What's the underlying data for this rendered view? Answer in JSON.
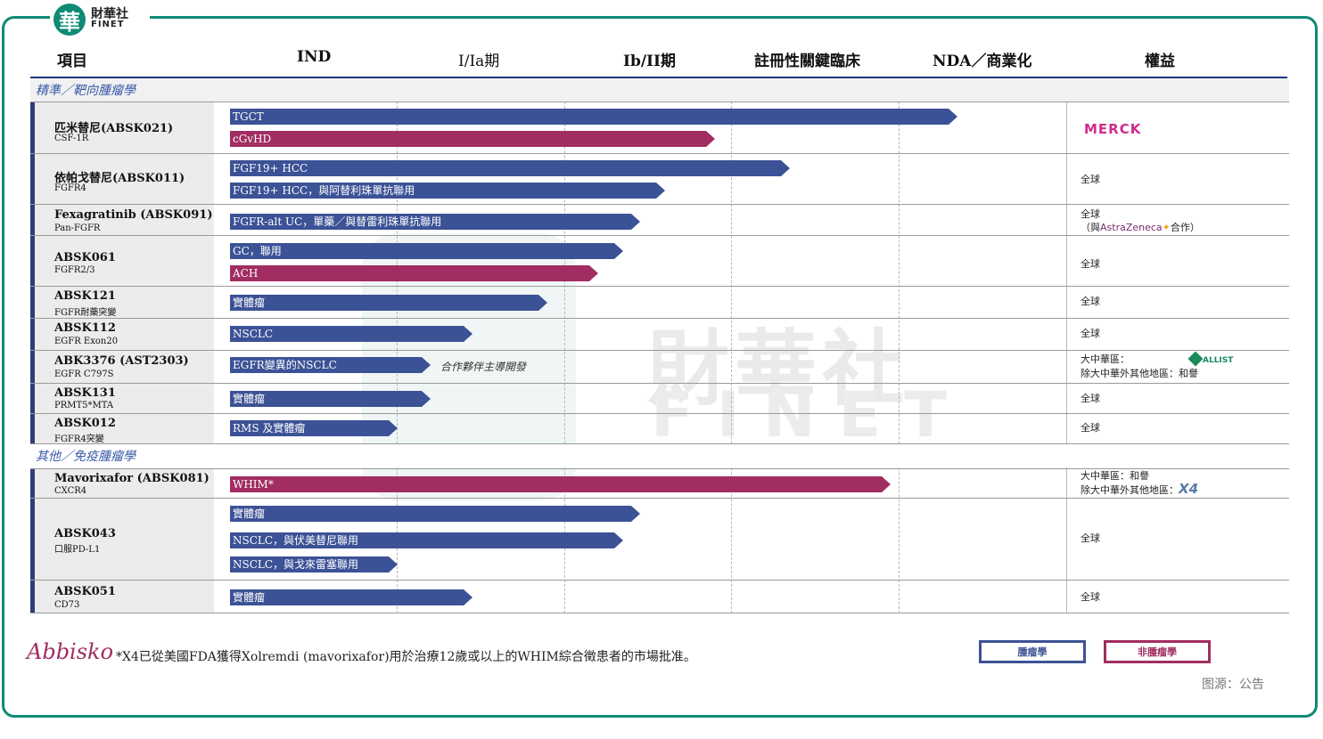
{
  "brand": {
    "logo_char": "華",
    "name_cn": "財華社",
    "name_en": "FINET"
  },
  "watermark": {
    "cn": "財華社",
    "en": "FINET"
  },
  "headers": [
    "項目",
    "IND",
    "I/Ia期",
    "Ib/II期",
    "註冊性關鍵臨床",
    "NDA／商業化",
    "權益"
  ],
  "sections": {
    "precision": "精準／靶向腫瘤學",
    "other": "其他／免疫腫瘤學"
  },
  "rows": [
    {
      "name": "匹米替尼(ABSK021)",
      "sub": "CSF-1R",
      "rights": "",
      "partner_logo": "MERCK"
    },
    {
      "name": "依帕戈替尼(ABSK011)",
      "sub": "FGFR4",
      "rights": "全球"
    },
    {
      "name": "Fexagratinib (ABSK091)",
      "sub": "Pan-FGFR",
      "rights": "全球",
      "rights2_pre": "（與",
      "rights2_logo": "AstraZeneca",
      "rights2_post": "合作）"
    },
    {
      "name": "ABSK061",
      "sub": "FGFR2/3",
      "rights": "全球"
    },
    {
      "name": "ABSK121",
      "sub": "FGFR耐藥突變",
      "rights": "全球"
    },
    {
      "name": "ABSK112",
      "sub": "EGFR Exon20",
      "rights": "全球"
    },
    {
      "name": "ABK3376 (AST2303)",
      "sub": "EGFR C797S",
      "rights": "大中華區：",
      "rights_logo": "ALLIST",
      "rights2": "除大中華外其他地區：和譽"
    },
    {
      "name": "ABSK131",
      "sub": "PRMT5*MTA",
      "rights": "全球"
    },
    {
      "name": "ABSK012",
      "sub": "FGFR4突變",
      "rights": "全球"
    },
    {
      "name": "Mavorixafor  (ABSK081)",
      "sub": "CXCR4",
      "rights": "大中華區：和譽",
      "rights2": "除大中華外其他地區：",
      "rights2_logo": "X4"
    },
    {
      "name": "ABSK043",
      "sub": "口服PD-L1",
      "rights": "全球"
    },
    {
      "name": "ABSK051",
      "sub": "CD73",
      "rights": "全球"
    }
  ],
  "bars": [
    {
      "label": "TGCT",
      "color": "blue",
      "stage_progress": 4.35
    },
    {
      "label": "cGvHD",
      "color": "red",
      "stage_progress": 2.9
    },
    {
      "label": "FGF19+ HCC",
      "color": "blue",
      "stage_progress": 3.35
    },
    {
      "label": "FGF19+ HCC，與阿替利珠單抗聯用",
      "color": "blue",
      "stage_progress": 2.6
    },
    {
      "label": "FGFR-alt UC，單藥／與替雷利珠單抗聯用",
      "color": "blue",
      "stage_progress": 2.45
    },
    {
      "label": "GC，聯用",
      "color": "blue",
      "stage_progress": 2.35
    },
    {
      "label": "ACH",
      "color": "red",
      "stage_progress": 2.2
    },
    {
      "label": "實體瘤",
      "color": "blue",
      "stage_progress": 1.9
    },
    {
      "label": "NSCLC",
      "color": "blue",
      "stage_progress": 1.45
    },
    {
      "label": "EGFR變異的NSCLC",
      "color": "blue",
      "stage_progress": 1.2
    },
    {
      "label": "實體瘤",
      "color": "blue",
      "stage_progress": 1.2
    },
    {
      "label": "RMS 及實體瘤",
      "color": "blue",
      "stage_progress": 1.0
    },
    {
      "label": "WHIM*",
      "color": "red",
      "stage_progress": 3.95
    },
    {
      "label": "實體瘤",
      "color": "blue",
      "stage_progress": 2.45
    },
    {
      "label": "NSCLC，與伏美替尼聯用",
      "color": "blue",
      "stage_progress": 2.35
    },
    {
      "label": "NSCLC，與戈來雷塞聯用",
      "color": "blue",
      "stage_progress": 1.0
    },
    {
      "label": "實體瘤",
      "color": "blue",
      "stage_progress": 1.45
    }
  ],
  "partner_note": "合作夥伴主導開發",
  "footer": {
    "company": "Abbisko",
    "footnote": "*X4已從美國FDA獲得Xolremdi (mavorixafor)用於治療12歲或以上的WHIM綜合徵患者的市場批准。",
    "legend_oncology": "腫瘤學",
    "legend_non_oncology": "非腫瘤學",
    "source": "图源：公告"
  },
  "colors": {
    "frame": "#0f8a74",
    "bar_oncology": "#3c5296",
    "bar_non_oncology": "#a12d62",
    "header_line": "#1f3a7a"
  }
}
